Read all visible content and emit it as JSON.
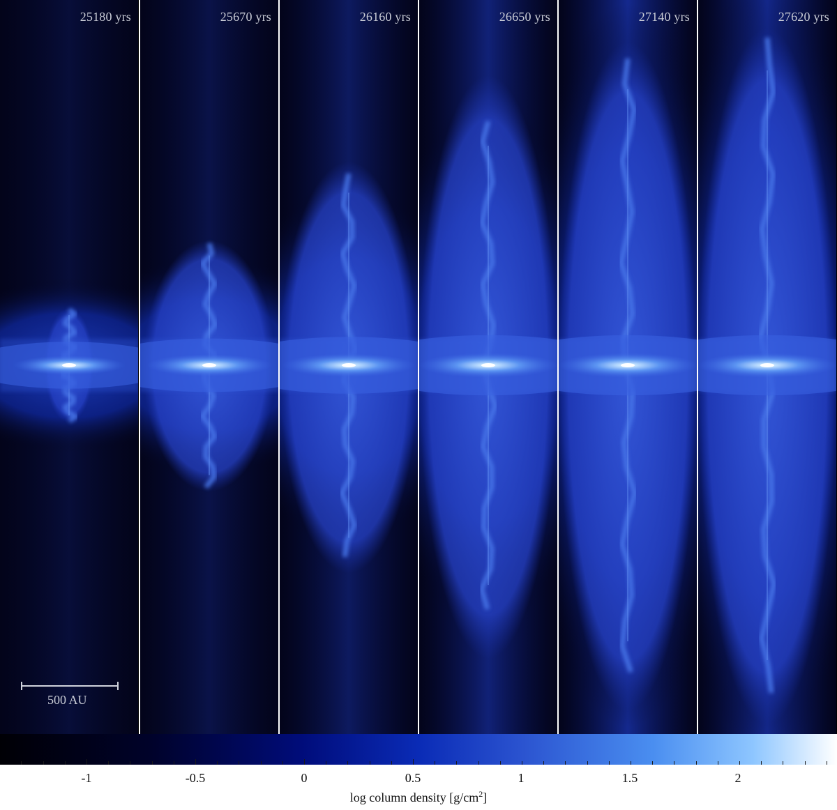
{
  "panels": [
    {
      "time_label": "25180 yrs",
      "stage": 1
    },
    {
      "time_label": "25670 yrs",
      "stage": 2
    },
    {
      "time_label": "26160 yrs",
      "stage": 3
    },
    {
      "time_label": "26650 yrs",
      "stage": 4
    },
    {
      "time_label": "27140 yrs",
      "stage": 5
    },
    {
      "time_label": "27620 yrs",
      "stage": 6
    }
  ],
  "scale_bar": {
    "label": "500 AU"
  },
  "colorbar": {
    "title": "log column density [g/cm",
    "title_sup": "2",
    "title_end": "]",
    "ticks": [
      "-1",
      "-0.5",
      "0",
      "0.5",
      "1",
      "1.5",
      "2"
    ],
    "colors": [
      "#000005",
      "#000c7a",
      "#2a52cf",
      "#4a8ef0",
      "#ffffff"
    ]
  }
}
